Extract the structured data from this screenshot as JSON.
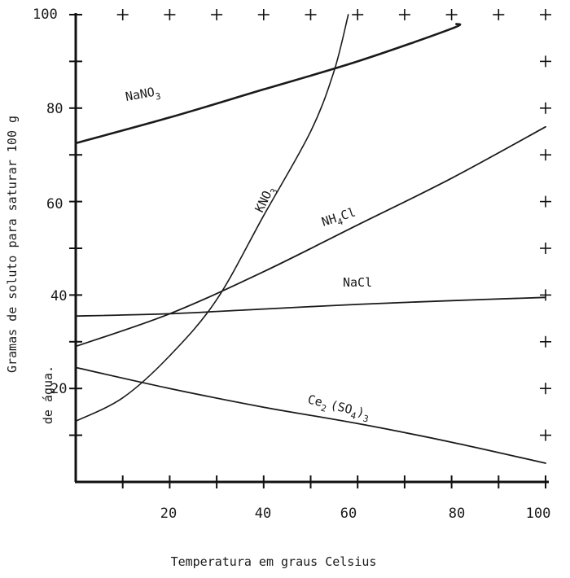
{
  "chart_data": {
    "type": "line",
    "xlabel": "Temperatura em graus Celsius",
    "ylabel_line1": "Gramas de soluto para saturar 100 g",
    "ylabel_line2": "de água.",
    "xlim": [
      0,
      100
    ],
    "ylim": [
      0,
      100
    ],
    "x_tick_labels": [
      "20",
      "40",
      "60",
      "80",
      "100"
    ],
    "y_tick_labels": [
      "20",
      "40",
      "60",
      "80",
      "100"
    ],
    "grid": "plus marks along top and right",
    "series": [
      {
        "name": "NaNO3",
        "label_main": "NaNO",
        "label_sub": "3",
        "points": [
          [
            0,
            72.5
          ],
          [
            20,
            78
          ],
          [
            40,
            84
          ],
          [
            60,
            90
          ],
          [
            80,
            97
          ],
          [
            81,
            98
          ]
        ]
      },
      {
        "name": "KNO3",
        "label_main": "KNO",
        "label_sub": "3",
        "points": [
          [
            0,
            13
          ],
          [
            10,
            18
          ],
          [
            20,
            27
          ],
          [
            30,
            39
          ],
          [
            40,
            57
          ],
          [
            50,
            75
          ],
          [
            55,
            88
          ],
          [
            58,
            100
          ]
        ]
      },
      {
        "name": "NH4Cl",
        "label_main": "NH",
        "label_sub": "4",
        "label_tail": "Cl",
        "points": [
          [
            0,
            29
          ],
          [
            20,
            36
          ],
          [
            40,
            45
          ],
          [
            60,
            55
          ],
          [
            80,
            65
          ],
          [
            100,
            76
          ]
        ]
      },
      {
        "name": "NaCl",
        "label_main": "NaCl",
        "points": [
          [
            0,
            35.5
          ],
          [
            20,
            36
          ],
          [
            40,
            37
          ],
          [
            60,
            38
          ],
          [
            80,
            38.8
          ],
          [
            100,
            39.5
          ]
        ]
      },
      {
        "name": "Ce2(SO4)3",
        "label_a": "Ce",
        "label_sub1": "2",
        "label_b": "(SO",
        "label_sub2": "4",
        "label_c": ")",
        "label_sub3": "3",
        "points": [
          [
            0,
            24.5
          ],
          [
            20,
            20
          ],
          [
            40,
            16
          ],
          [
            60,
            12.5
          ],
          [
            80,
            8.5
          ],
          [
            100,
            4
          ]
        ]
      }
    ]
  }
}
